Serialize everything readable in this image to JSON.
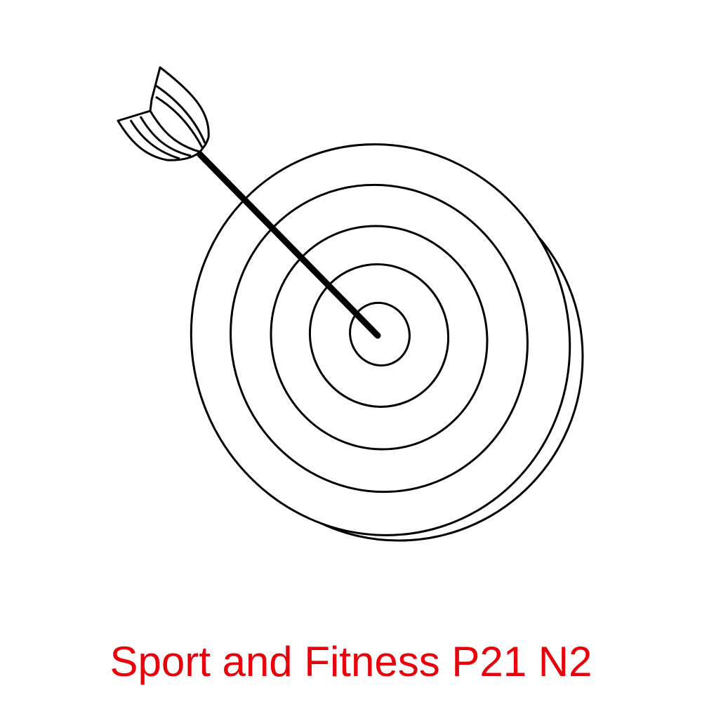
{
  "caption": {
    "text": "Sport and Fitness P21 N2",
    "color": "#e8000b"
  },
  "illustration": {
    "subject": "target-with-arrow",
    "line_color": "#000000",
    "fill_color": "#ffffff",
    "ring_count": 5
  }
}
